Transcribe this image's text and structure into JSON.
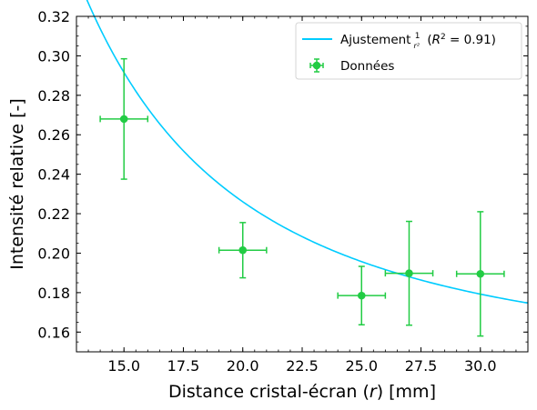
{
  "chart_data": {
    "type": "scatter",
    "xlabel": {
      "pre": "Distance cristal-écran (",
      "var": "r",
      "post": ") [mm]"
    },
    "ylabel": "Intensité relative [-]",
    "xlim": [
      13.0,
      32.0
    ],
    "ylim": [
      0.15,
      0.32
    ],
    "x_ticks": [
      "15.0",
      "17.5",
      "20.0",
      "22.5",
      "25.0",
      "27.5",
      "30.0"
    ],
    "x_tick_values": [
      15.0,
      17.5,
      20.0,
      22.5,
      25.0,
      27.5,
      30.0
    ],
    "y_ticks": [
      "0.16",
      "0.18",
      "0.20",
      "0.22",
      "0.24",
      "0.26",
      "0.28",
      "0.30",
      "0.32"
    ],
    "y_tick_values": [
      0.16,
      0.18,
      0.2,
      0.22,
      0.24,
      0.26,
      0.28,
      0.3,
      0.32
    ],
    "x_minor_step": 0.5,
    "y_minor_step": 0.005,
    "tick_direction": "in",
    "grid": false,
    "legend_position": "upper right",
    "series": [
      {
        "name": "Données",
        "kind": "errorbar",
        "color": "#22cc44",
        "points": [
          {
            "x": 15,
            "y": 0.268,
            "xerr": 1.0,
            "yerr": 0.0305
          },
          {
            "x": 20,
            "y": 0.2015,
            "xerr": 1.0,
            "yerr": 0.014
          },
          {
            "x": 25,
            "y": 0.1785,
            "xerr": 1.0,
            "yerr": 0.0148
          },
          {
            "x": 27,
            "y": 0.1898,
            "xerr": 1.0,
            "yerr": 0.0263
          },
          {
            "x": 30,
            "y": 0.1895,
            "xerr": 1.0,
            "yerr": 0.0315
          }
        ]
      },
      {
        "name": "Ajustement 1/r² (R² = 0.91)",
        "kind": "line",
        "color": "#00ccff",
        "model": "y = a / r^2 + b",
        "a": 33.7,
        "b": 0.1418,
        "x_range": [
          13.0,
          32.0
        ]
      }
    ]
  }
}
